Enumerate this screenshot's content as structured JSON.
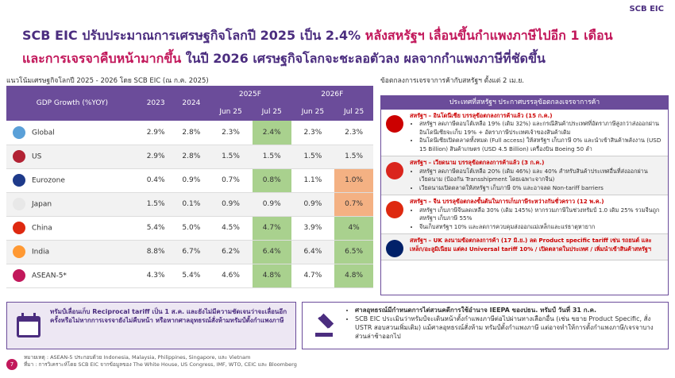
{
  "header": {
    "brand": "SCB EIC",
    "title": [
      {
        "text": "SCB EIC ปรับประมาณการเศรษฐกิจโลกปี 2025 เป็น 2.4% ",
        "tone": "purple"
      },
      {
        "text": "หลังสหรัฐฯ เลื่อนขึ้นกำแพงภาษีไปอีก 1 เดือน",
        "tone": "pink"
      },
      {
        "text": "และการเจรจาคืบหน้ามากขึ้น",
        "tone": "pink"
      },
      {
        "text": " ในปี 2026 เศรษฐกิจโลกจะชะลอตัวลง ผลจากกำแพงภาษีที่ชัดขึ้น",
        "tone": "purple"
      }
    ]
  },
  "table": {
    "caption": "แนวโน้มเศรษฐกิจโลกปี 2025 - 2026 โดย SCB EIC (ณ ก.ค. 2025)",
    "corner": "GDP Growth (%YOY)",
    "years": [
      "2023",
      "2024"
    ],
    "forecasts": [
      "2025F",
      "2026F"
    ],
    "months": [
      "Jun 25",
      "Jul 25",
      "Jun 25",
      "Jul 25"
    ],
    "rows": [
      {
        "name": "Global",
        "cells": [
          "2.9%",
          "2.8%",
          "2.3%",
          "2.4%",
          "2.3%",
          "2.3%"
        ],
        "up": [
          3
        ],
        "down": []
      },
      {
        "name": "US",
        "cells": [
          "2.9%",
          "2.8%",
          "1.5%",
          "1.5%",
          "1.5%",
          "1.5%"
        ],
        "up": [],
        "down": []
      },
      {
        "name": "Eurozone",
        "cells": [
          "0.4%",
          "0.9%",
          "0.7%",
          "0.8%",
          "1.1%",
          "1.0%"
        ],
        "up": [
          3
        ],
        "down": [
          5
        ]
      },
      {
        "name": "Japan",
        "cells": [
          "1.5%",
          "0.1%",
          "0.9%",
          "0.9%",
          "0.9%",
          "0.7%"
        ],
        "up": [],
        "down": [
          5
        ]
      },
      {
        "name": "China",
        "cells": [
          "5.4%",
          "5.0%",
          "4.5%",
          "4.7%",
          "3.9%",
          "4%"
        ],
        "up": [
          3,
          5
        ],
        "down": []
      },
      {
        "name": "India",
        "cells": [
          "8.8%",
          "6.7%",
          "6.2%",
          "6.4%",
          "6.4%",
          "6.5%"
        ],
        "up": [
          3,
          5
        ],
        "down": []
      },
      {
        "name": "ASEAN-5*",
        "cells": [
          "4.3%",
          "5.4%",
          "4.6%",
          "4.8%",
          "4.7%",
          "4.8%"
        ],
        "up": [
          3,
          5
        ],
        "down": []
      }
    ]
  },
  "deals": {
    "caption": "ข้อตกลงการเจรจาการค้ากับสหรัฐฯ ตั้งแต่ 2 เม.ย.",
    "box_title": "ประเทศที่สหรัฐฯ ประกาศบรรลุข้อตกลงเจรจาการค้า",
    "items": [
      {
        "heading": "สหรัฐฯ – อินโดนีเซีย บรรลุข้อตกลงการค้าแล้ว (15 ก.ค.)",
        "bullets": [
          "สหรัฐฯ ลดภาษีตอบโต้เหลือ 19% (เดิม 32%) และกรณีสินค้าประเทศที่อัตราภาษีสูงกว่าส่งออกผ่านอินโดนีเซียจะเก็บ 19% + อัตราภาษีประเทศเจ้าของสินค้าเดิม",
          "อินโดนีเซียเปิดตลาดทั้งหมด (Full access) ให้สหรัฐฯ เก็บภาษี 0% และนำเข้าสินค้าพลังงาน (USD 15 Billion) สินค้าเกษตร (USD 4.5 Billion) เครื่องบิน Boeing 50 ลำ"
        ]
      },
      {
        "heading": "สหรัฐฯ – เวียดนาม บรรลุข้อตกลงการค้าแล้ว (3 ก.ค.)",
        "bullets": [
          "สหรัฐฯ ลดภาษีตอบโต้เหลือ 20% (เดิม 46%) และ 40% สำหรับสินค้าประเทศอื่นที่ส่งออกผ่านเวียดนาม (ป้องกัน Transshipment โดยเฉพาะจากจีน)",
          "เวียดนามเปิดตลาดให้สหรัฐฯ เก็บภาษี 0% และอาจลด Non-tariff barriers"
        ]
      },
      {
        "heading": "สหรัฐฯ – จีน บรรลุข้อตกลงขั้นต้นในการเก็บภาษีระหว่างกันชั่วคราว (12 พ.ค.)",
        "bullets": [
          "สหรัฐฯ เก็บภาษีจีนลดเหลือ 30% (เดิม 145%) หากรวมภาษีในช่วงทรัมป์ 1.0 เดิม 25% รวมจีนถูกสหรัฐฯ เก็บภาษี 55%",
          "จีนเก็บสหรัฐฯ 10% และลดการควบคุมส่งออกแม่เหล็กและแร่ธาตุหายาก"
        ]
      },
      {
        "heading": "สหรัฐฯ – UK ลงนามข้อตกลงการค้า (17 มิ.ย.) ลด Product specific tariff เช่น รถยนต์ และเหล็ก/อะลูมิเนียม แต่คง Universal tariff 10% / เปิดตลาดในประเทศ / เพิ่มนำเข้าสินค้าสหรัฐฯ",
        "bullets": []
      }
    ]
  },
  "notice": "ทรัมป์เลื่อนเก็บ Reciprocal tariff เป็น 1 ส.ค. และยังไม่มีความชัดเจนว่าจะเลื่อนอีกครั้งหรือไม่หากการเจรจายังไม่คืบหน้า หรือหากศาลอุทธรณ์สั่งห้ามทรัมป์ตั้งกำแพงภาษี",
  "court": [
    "ศาลอุทธรณ์มีกำหนดการไต่สวนคดีการใช้อำนาจ IEEPA ของปธน. ทรัมป์ วันที่ 31 ก.ค.",
    "SCB EIC ประเมินว่าทรัมป์จะเดินหน้าตั้งกำแพงภาษีต่อไปผ่านทางเลือกอื่น (เช่น ขยาย Product Specific, สั่ง USTR สอบสวนเพิ่มเติม) แม้ศาลอุทธรณ์สั่งห้าม ทรัมป์ตั้งกำแพงภาษี แต่อาจทำให้การตั้งกำแพงภาษี/เจรจาบางส่วนล่าช้าออกไป"
  ],
  "footer": {
    "page": "7",
    "note": "หมายเหตุ : ASEAN-5 ประกอบด้วย Indonesia, Malaysia, Philippines, Singapore, และ Vietnam",
    "source": "ที่มา : การวิเคราะห์โดย SCB EIC จากข้อมูลของ The White House, US Congress, IMF, WTO, CEIC และ Bloomberg"
  }
}
